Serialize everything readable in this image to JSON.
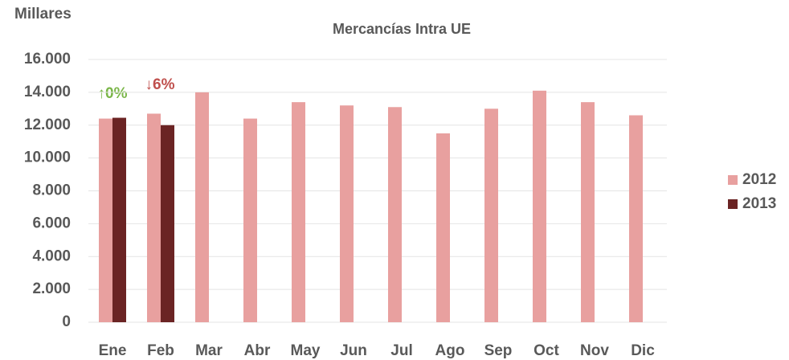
{
  "chart_data": {
    "type": "bar",
    "title": "Mercancías Intra UE",
    "y_axis_label": "Millares",
    "categories": [
      "Ene",
      "Feb",
      "Mar",
      "Abr",
      "May",
      "Jun",
      "Jul",
      "Ago",
      "Sep",
      "Oct",
      "Nov",
      "Dic"
    ],
    "series": [
      {
        "name": "2012",
        "color": "#e8a09f",
        "values": [
          12400,
          12700,
          14000,
          12400,
          13400,
          13200,
          13100,
          11500,
          13000,
          14100,
          13400,
          12600
        ]
      },
      {
        "name": "2013",
        "color": "#6b2424",
        "values": [
          12450,
          12000,
          null,
          null,
          null,
          null,
          null,
          null,
          null,
          null,
          null,
          null
        ]
      }
    ],
    "annotations": [
      "↑0%",
      "↓6%"
    ],
    "annotation_colors": [
      "#7ab648",
      "#c0504d"
    ],
    "ylim": [
      0,
      16000
    ],
    "yticks": [
      0,
      {
        "value": 2000,
        "label": "2.000"
      },
      {
        "value": 4000,
        "label": "4.000"
      },
      {
        "value": 6000,
        "label": "6.000"
      },
      {
        "value": 8000,
        "label": "8.000"
      },
      {
        "value": 10000,
        "label": "10.000"
      },
      {
        "value": 12000,
        "label": "12.000"
      },
      {
        "value": 14000,
        "label": "14.000"
      },
      {
        "value": 16000,
        "label": "16.000"
      }
    ],
    "grid": true,
    "legend": "right"
  }
}
